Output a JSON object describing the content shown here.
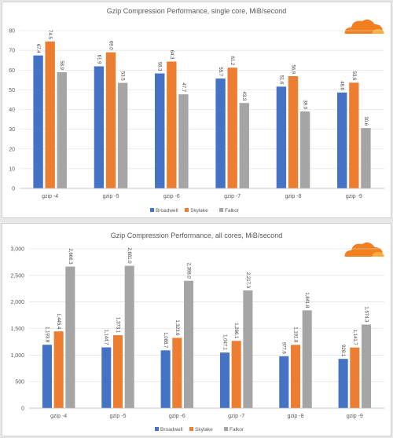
{
  "chart_data": [
    {
      "type": "bar",
      "title": "Gzip Compression Performance, single core, MiB/second",
      "categories": [
        "gzip -4",
        "gzip -5",
        "gzip -6",
        "gzip -7",
        "gzip -8",
        "gzip -9"
      ],
      "series": [
        {
          "name": "Broadwell",
          "color": "#4472c4",
          "values": [
            67.4,
            61.9,
            58.3,
            55.7,
            51.6,
            48.6
          ],
          "labels": [
            "67.4",
            "61.9",
            "58.3",
            "55.7",
            "51.6",
            "48.6"
          ]
        },
        {
          "name": "Skylake",
          "color": "#ed7d31",
          "values": [
            74.5,
            69.0,
            64.3,
            61.2,
            56.9,
            53.6
          ],
          "labels": [
            "74.5",
            "69.0",
            "64.3",
            "61.2",
            "56.9",
            "53.6"
          ]
        },
        {
          "name": "Falkor",
          "color": "#a5a5a5",
          "values": [
            58.9,
            53.5,
            47.7,
            43.3,
            39.0,
            30.6
          ],
          "labels": [
            "58.9",
            "53.5",
            "47.7",
            "43.3",
            "39.0",
            "30.6"
          ]
        }
      ],
      "ylim": [
        0,
        80
      ],
      "yticks": [
        0,
        10,
        20,
        30,
        40,
        50,
        60,
        70,
        80
      ],
      "ytick_labels": [
        "0",
        "10",
        "20",
        "30",
        "40",
        "50",
        "60",
        "70",
        "80"
      ],
      "grid": true,
      "legend": "bottom"
    },
    {
      "type": "bar",
      "title": "Gzip Compression Performance, all cores, MiB/second",
      "categories": [
        "gzip -4",
        "gzip -5",
        "gzip -6",
        "gzip -7",
        "gzip -8",
        "gzip -9"
      ],
      "series": [
        {
          "name": "Broadwell",
          "color": "#4472c4",
          "values": [
            1193.8,
            1144.7,
            1088.7,
            1047.1,
            977.6,
            928.1
          ],
          "labels": [
            "1,193.8",
            "1,144.7",
            "1,088.7",
            "1,047.1",
            "977.6",
            "928.1"
          ]
        },
        {
          "name": "Skylake",
          "color": "#ed7d31",
          "values": [
            1445.4,
            1373.1,
            1323.6,
            1266.1,
            1191.8,
            1141.7
          ],
          "labels": [
            "1,445.4",
            "1,373.1",
            "1,323.6",
            "1,266.1",
            "1,191.8",
            "1,141.7"
          ]
        },
        {
          "name": "Falkor",
          "color": "#a5a5a5",
          "values": [
            2666.3,
            2681.0,
            2398.0,
            2217.3,
            1841.8,
            1574.3
          ],
          "labels": [
            "2,666.3",
            "2,681.0",
            "2,398.0",
            "2,217.3",
            "1,841.8",
            "1,574.3"
          ]
        }
      ],
      "ylim": [
        0,
        3000
      ],
      "yticks": [
        0,
        500,
        1000,
        1500,
        2000,
        2500,
        3000
      ],
      "ytick_labels": [
        "0",
        "500",
        "1,000",
        "1,500",
        "2,000",
        "2,500",
        "3,000"
      ],
      "grid": true,
      "legend": "bottom"
    }
  ],
  "logo": {
    "icon": "cloudflare-cloud-icon",
    "colors": [
      "#f38020",
      "#fbad41"
    ]
  }
}
